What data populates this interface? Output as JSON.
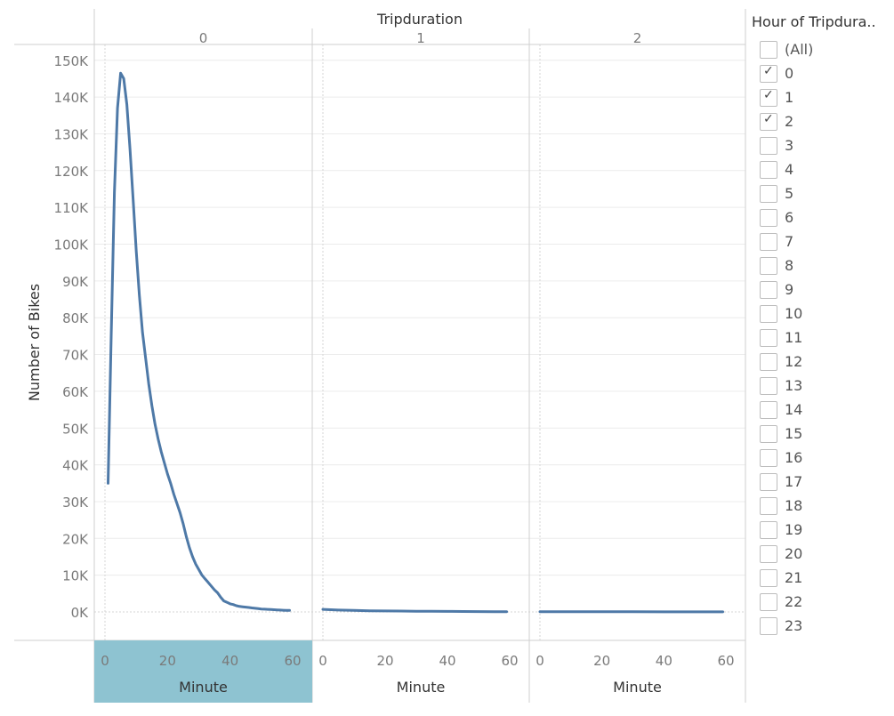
{
  "chart_data": {
    "type": "line",
    "title": "Tripduration",
    "ylabel": "Number of Bikes",
    "xlabel": "Minute",
    "ylim": [
      -5000,
      155000
    ],
    "xlim": [
      -3,
      62
    ],
    "y_ticks": [
      0,
      10000,
      20000,
      30000,
      40000,
      50000,
      60000,
      70000,
      80000,
      90000,
      100000,
      110000,
      120000,
      130000,
      140000,
      150000
    ],
    "y_tick_labels": [
      "0K",
      "10K",
      "20K",
      "30K",
      "40K",
      "50K",
      "60K",
      "70K",
      "80K",
      "90K",
      "100K",
      "110K",
      "120K",
      "130K",
      "140K",
      "150K"
    ],
    "x_ticks": [
      0,
      20,
      40,
      60
    ],
    "x_tick_labels": [
      "0",
      "20",
      "40",
      "60"
    ],
    "color": "#4e79a7",
    "highlight_color": "#8ec3d1",
    "panels": [
      {
        "header": "0",
        "highlighted": true,
        "series": [
          {
            "x": [
              1,
              2,
              3,
              4,
              5,
              6,
              7,
              8,
              9,
              10,
              11,
              12,
              13,
              14,
              15,
              16,
              17,
              18,
              19,
              20,
              21,
              22,
              23,
              24,
              25,
              26,
              27,
              28,
              29,
              30,
              31,
              32,
              33,
              34,
              35,
              36,
              37,
              38,
              39,
              40,
              41,
              42,
              43,
              44,
              45,
              46,
              47,
              48,
              49,
              50,
              51,
              52,
              53,
              54,
              55,
              56,
              57,
              58,
              59
            ],
            "y": [
              35000,
              75000,
              114000,
              137000,
              146500,
              145000,
              138000,
              126000,
              112000,
              98000,
              86000,
              76000,
              69000,
              62000,
              56000,
              51000,
              47000,
              43500,
              40500,
              37500,
              35000,
              32000,
              29500,
              27000,
              24000,
              20500,
              17500,
              15000,
              13000,
              11500,
              10000,
              9000,
              8000,
              7000,
              6000,
              5200,
              4000,
              3000,
              2600,
              2200,
              2000,
              1700,
              1500,
              1400,
              1300,
              1200,
              1100,
              1000,
              900,
              800,
              750,
              700,
              650,
              600,
              550,
              500,
              450,
              420,
              400
            ]
          }
        ]
      },
      {
        "header": "1",
        "highlighted": false,
        "series": [
          {
            "x": [
              0,
              5,
              10,
              15,
              20,
              25,
              30,
              35,
              40,
              45,
              50,
              55,
              59
            ],
            "y": [
              700,
              500,
              400,
              320,
              270,
              230,
              190,
              160,
              140,
              120,
              100,
              80,
              70
            ]
          }
        ]
      },
      {
        "header": "2",
        "highlighted": false,
        "series": [
          {
            "x": [
              0,
              10,
              20,
              30,
              40,
              50,
              59
            ],
            "y": [
              60,
              50,
              45,
              40,
              35,
              30,
              25
            ]
          }
        ]
      }
    ]
  },
  "filter": {
    "title": "Hour of Tripdura..",
    "items": [
      {
        "label": "(All)",
        "checked": false
      },
      {
        "label": "0",
        "checked": true
      },
      {
        "label": "1",
        "checked": true
      },
      {
        "label": "2",
        "checked": true
      },
      {
        "label": "3",
        "checked": false
      },
      {
        "label": "4",
        "checked": false
      },
      {
        "label": "5",
        "checked": false
      },
      {
        "label": "6",
        "checked": false
      },
      {
        "label": "7",
        "checked": false
      },
      {
        "label": "8",
        "checked": false
      },
      {
        "label": "9",
        "checked": false
      },
      {
        "label": "10",
        "checked": false
      },
      {
        "label": "11",
        "checked": false
      },
      {
        "label": "12",
        "checked": false
      },
      {
        "label": "13",
        "checked": false
      },
      {
        "label": "14",
        "checked": false
      },
      {
        "label": "15",
        "checked": false
      },
      {
        "label": "16",
        "checked": false
      },
      {
        "label": "17",
        "checked": false
      },
      {
        "label": "18",
        "checked": false
      },
      {
        "label": "19",
        "checked": false
      },
      {
        "label": "20",
        "checked": false
      },
      {
        "label": "21",
        "checked": false
      },
      {
        "label": "22",
        "checked": false
      },
      {
        "label": "23",
        "checked": false
      }
    ]
  }
}
